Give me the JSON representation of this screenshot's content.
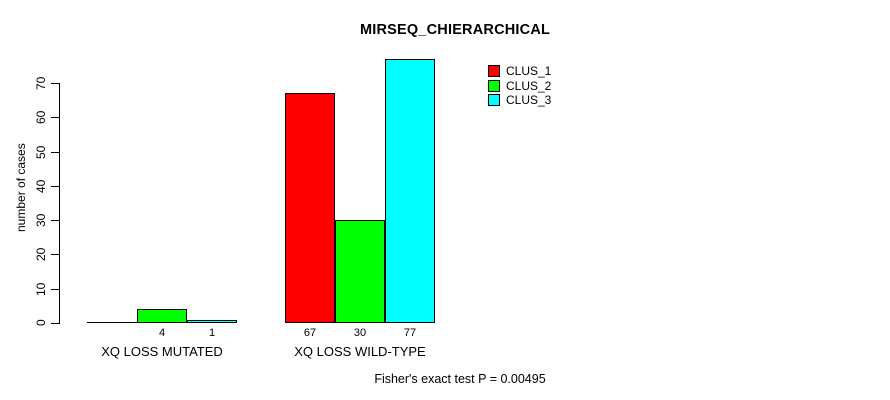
{
  "chart_data": {
    "type": "bar",
    "title": "MIRSEQ_CHIERARCHICAL",
    "ylabel": "number of cases",
    "xlabel": "",
    "ylim": [
      0,
      70
    ],
    "yticks": [
      0,
      10,
      20,
      30,
      40,
      50,
      60,
      70
    ],
    "grid": false,
    "categories": [
      "XQ LOSS MUTATED",
      "XQ LOSS WILD-TYPE"
    ],
    "series": [
      {
        "name": "CLUS_1",
        "color": "#ff0000",
        "values": [
          0,
          67
        ]
      },
      {
        "name": "CLUS_2",
        "color": "#00ff00",
        "values": [
          4,
          30
        ]
      },
      {
        "name": "CLUS_3",
        "color": "#00ffff",
        "values": [
          1,
          77
        ]
      }
    ],
    "bar_value_labels": [
      [
        "",
        "4",
        "1"
      ],
      [
        "67",
        "30",
        "77"
      ]
    ],
    "legend": {
      "position": "top-right",
      "entries": [
        "CLUS_1",
        "CLUS_2",
        "CLUS_3"
      ]
    },
    "annotation": "Fisher's exact test P = 0.00495",
    "colors": {
      "background": "#ffffff",
      "axis": "#000000",
      "text": "#000000"
    }
  }
}
